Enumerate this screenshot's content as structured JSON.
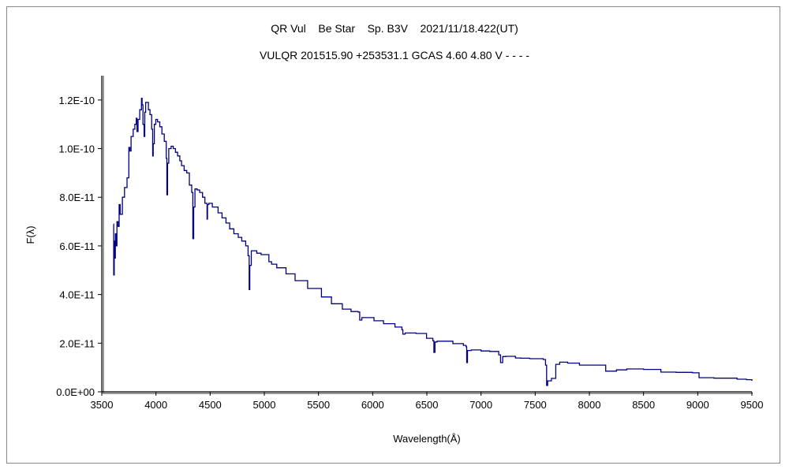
{
  "chart_data": {
    "type": "line",
    "title": "QR Vul    Be Star    Sp. B3V    2021/11/18.422(UT)",
    "subtitle": "VULQR 201515.90 +253531.1 GCAS 4.60 4.80 V - - - -",
    "xlabel": "Wavelength(Å)",
    "ylabel": "F(λ)",
    "xlim": [
      3500,
      9500
    ],
    "ylim": [
      0,
      1.3e-10
    ],
    "xticks": [
      3500,
      4000,
      4500,
      5000,
      5500,
      6000,
      6500,
      7000,
      7500,
      8000,
      8500,
      9000,
      9500
    ],
    "xtick_labels": [
      "3500",
      "4000",
      "4500",
      "5000",
      "5500",
      "6000",
      "6500",
      "7000",
      "7500",
      "8000",
      "8500",
      "9000",
      "9500"
    ],
    "yticks": [
      0,
      2e-11,
      4e-11,
      6e-11,
      8e-11,
      1e-10,
      1.2e-10
    ],
    "ytick_labels": [
      "0.0E+00",
      "2.0E-11",
      "4.0E-11",
      "6.0E-11",
      "8.0E-11",
      "1.0E-10",
      "1.2E-10"
    ],
    "grid": false,
    "line_color": "#000080",
    "series": [
      {
        "x": [
          3609,
          3610,
          3615,
          3620,
          3625,
          3630,
          3640,
          3650,
          3660,
          3670,
          3690,
          3710,
          3733,
          3750,
          3760,
          3770,
          3790,
          3805,
          3818,
          3825,
          3835,
          3850,
          3866,
          3872,
          3880,
          3890,
          3897,
          3905,
          3915,
          3930,
          3945,
          3960,
          3970,
          3975,
          3985,
          3999,
          4015,
          4035,
          4055,
          4077,
          4095,
          4101,
          4107,
          4118,
          4140,
          4160,
          4180,
          4200,
          4220,
          4236,
          4260,
          4284,
          4308,
          4330,
          4340,
          4348,
          4360,
          4380,
          4404,
          4430,
          4452,
          4471,
          4476,
          4488,
          4520,
          4573,
          4610,
          4646,
          4680,
          4719,
          4760,
          4792,
          4828,
          4850,
          4860,
          4866,
          4880,
          4897,
          4930,
          4970,
          5042,
          5067,
          5115,
          5200,
          5284,
          5400,
          5527,
          5620,
          5720,
          5800,
          5866,
          5880,
          5900,
          6012,
          6100,
          6206,
          6270,
          6279,
          6300,
          6400,
          6497,
          6555,
          6565,
          6575,
          6594,
          6740,
          6837,
          6862,
          6868,
          6875,
          6910,
          7000,
          7080,
          7163,
          7180,
          7200,
          7226,
          7318,
          7366,
          7450,
          7573,
          7595,
          7605,
          7615,
          7650,
          7690,
          7726,
          7800,
          7908,
          8054,
          8151,
          8250,
          8345,
          8500,
          8660,
          8800,
          8952,
          9012,
          9150,
          9363,
          9450,
          9500
        ],
        "y": [
          6.9e-11,
          4.8e-11,
          6.2e-11,
          5.5e-11,
          6.5e-11,
          6e-11,
          7e-11,
          6.8e-11,
          7.7e-11,
          7.3e-11,
          8e-11,
          8.4e-11,
          8.8e-11,
          1.005e-10,
          9.9e-11,
          1.05e-10,
          1.08e-10,
          1.1e-10,
          1.125e-10,
          1.07e-10,
          1.12e-10,
          1.16e-10,
          1.207e-10,
          1.18e-10,
          1.1e-10,
          1.05e-10,
          1.15e-10,
          1.19e-10,
          1.19e-10,
          1.16e-10,
          1.14e-10,
          1.08e-10,
          9.7e-11,
          1.02e-10,
          1.1e-10,
          1.12e-10,
          1.11e-10,
          1.09e-10,
          1.06e-10,
          1.03e-10,
          9.6e-11,
          8.1e-11,
          9.4e-11,
          1e-10,
          1.01e-10,
          1e-10,
          9.85e-11,
          9.7e-11,
          9.5e-11,
          9.3e-11,
          9.1e-11,
          9e-11,
          8.5e-11,
          8.2e-11,
          6.3e-11,
          7.6e-11,
          8.34e-11,
          8.3e-11,
          8.2e-11,
          8e-11,
          7.75e-11,
          7.1e-11,
          7.7e-11,
          7.75e-11,
          7.6e-11,
          7.36e-11,
          7.15e-11,
          6.94e-11,
          6.7e-11,
          6.5e-11,
          6.35e-11,
          6.2e-11,
          6e-11,
          5.6e-11,
          4.2e-11,
          5.2e-11,
          5.8e-11,
          5.8e-11,
          5.7e-11,
          5.64e-11,
          5.35e-11,
          5.25e-11,
          5.1e-11,
          4.85e-11,
          4.57e-11,
          4.25e-11,
          3.9e-11,
          3.62e-11,
          3.4e-11,
          3.3e-11,
          3.28e-11,
          2.95e-11,
          3.05e-11,
          2.92e-11,
          2.8e-11,
          2.66e-11,
          2.55e-11,
          2.37e-11,
          2.42e-11,
          2.4e-11,
          2.2e-11,
          2.1e-11,
          1.62e-11,
          2.05e-11,
          2.08e-11,
          1.98e-11,
          1.91e-11,
          1.85e-11,
          1.2e-11,
          1.7e-11,
          1.72e-11,
          1.68e-11,
          1.66e-11,
          1.52e-11,
          1.2e-11,
          1.45e-11,
          1.46e-11,
          1.39e-11,
          1.38e-11,
          1.36e-11,
          1.33e-11,
          1.1e-11,
          2.6e-12,
          4.5e-12,
          5.5e-12,
          1.13e-11,
          1.22e-11,
          1.18e-11,
          1.1e-11,
          1.1e-11,
          8.5e-12,
          9e-12,
          9.4e-12,
          9.2e-12,
          8.1e-12,
          8e-12,
          7.8e-12,
          5.8e-12,
          5.6e-12,
          5.2e-12,
          5e-12,
          4.5e-12
        ]
      }
    ]
  }
}
